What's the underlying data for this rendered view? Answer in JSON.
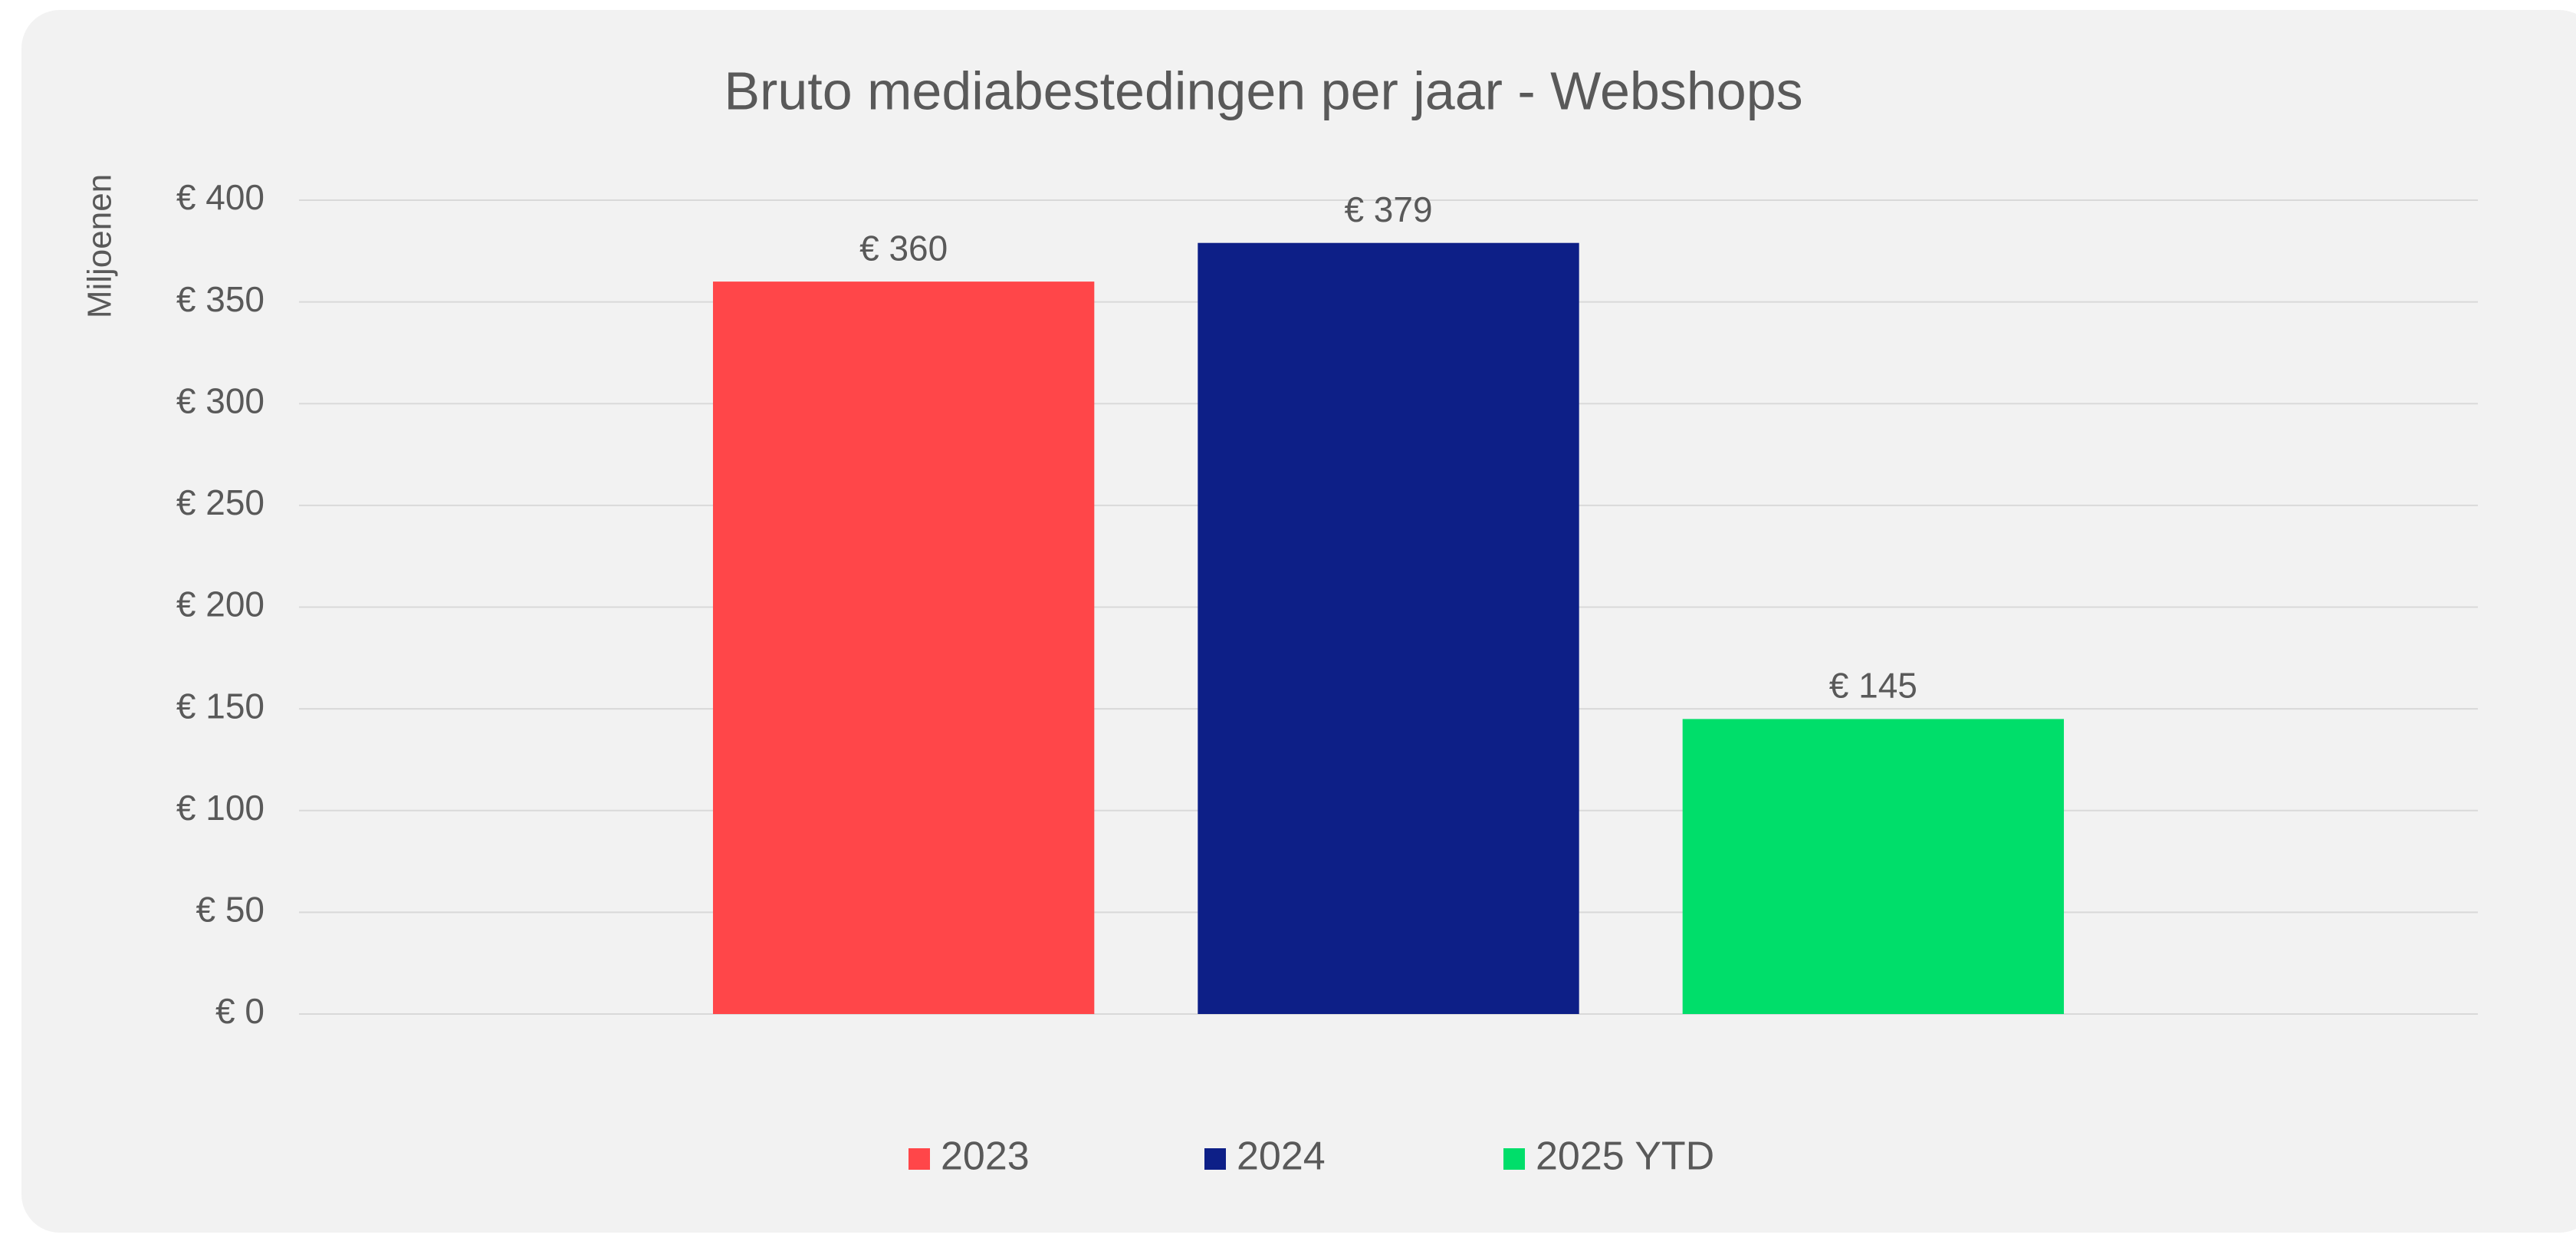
{
  "chart_data": {
    "type": "bar",
    "title": "Bruto mediabestedingen per jaar - Webshops",
    "y_axis_label": "Miljoenen",
    "categories": [
      null
    ],
    "series": [
      {
        "name": "2023",
        "color": "#ff4649",
        "values": [
          360
        ],
        "value_labels": [
          "€ 360"
        ]
      },
      {
        "name": "2024",
        "color": "#0d1f87",
        "values": [
          379
        ],
        "value_labels": [
          "€ 379"
        ]
      },
      {
        "name": "2025 YTD",
        "color": "#00de6a",
        "values": [
          145
        ],
        "value_labels": [
          "€ 145"
        ]
      }
    ],
    "ylim": [
      0,
      400
    ],
    "yticks": [
      {
        "value": 0,
        "label": "€ 0"
      },
      {
        "value": 50,
        "label": "€ 50"
      },
      {
        "value": 100,
        "label": "€ 100"
      },
      {
        "value": 150,
        "label": "€ 150"
      },
      {
        "value": 200,
        "label": "€ 200"
      },
      {
        "value": 250,
        "label": "€ 250"
      },
      {
        "value": 300,
        "label": "€ 300"
      },
      {
        "value": 350,
        "label": "€ 350"
      },
      {
        "value": 400,
        "label": "€ 400"
      }
    ],
    "grid": true,
    "legend": "bottom"
  }
}
